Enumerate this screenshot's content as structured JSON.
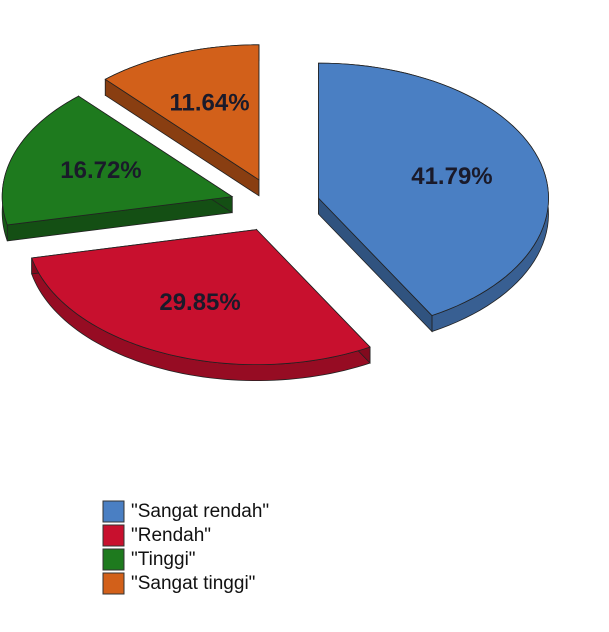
{
  "chart_data": {
    "type": "pie",
    "categories": [
      "\"Sangat rendah\"",
      "\"Rendah\"",
      "\"Tinggi\"",
      "\"Sangat tinggi\""
    ],
    "values": [
      41.79,
      29.85,
      16.72,
      11.64
    ],
    "value_labels": [
      "41.79%",
      "29.85%",
      "16.72%",
      "11.64%"
    ],
    "colors": [
      "#4a7fc3",
      "#c8102e",
      "#1e7a1e",
      "#d2601a"
    ],
    "legend": "bottom"
  }
}
